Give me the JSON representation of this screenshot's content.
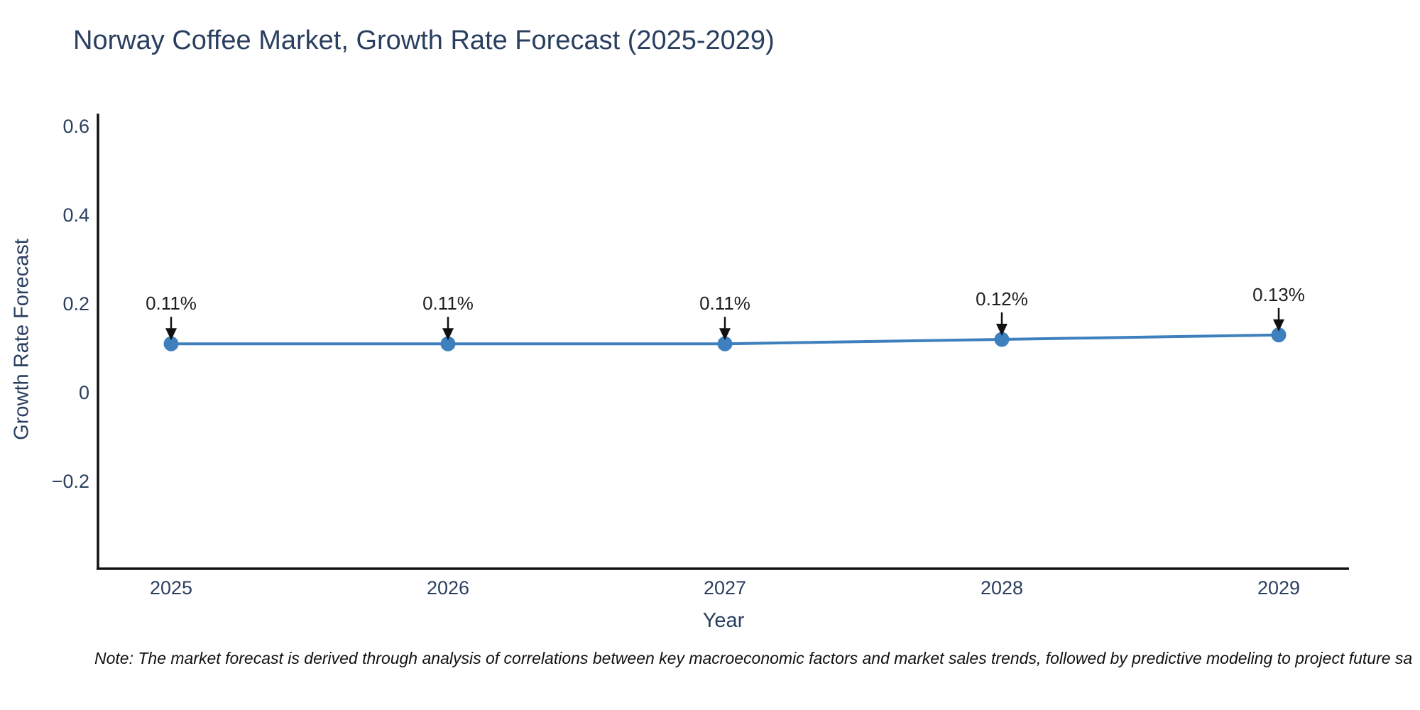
{
  "page": {
    "background": "#ffffff"
  },
  "header": {
    "title": "Norway Coffee Market, Growth Rate Forecast (2025-2029)"
  },
  "footnote": {
    "text": "Note: The market forecast is derived through analysis of correlations between key macroeconomic factors and market sales trends, followed by predictive modeling to project future sa"
  },
  "colors": {
    "text": "#2a3f5f",
    "annotation_text": "#1f1f1f",
    "axis": "#111111",
    "arrow": "#111111",
    "series_blue": "#3e80bd",
    "background": "#ffffff"
  },
  "chart_data": {
    "type": "line",
    "title": "Norway Coffee Market, Growth Rate Forecast (2025-2029)",
    "xlabel": "Year",
    "ylabel": "Growth Rate Forecast",
    "categories": [
      "2025",
      "2026",
      "2027",
      "2028",
      "2029"
    ],
    "values": [
      0.11,
      0.11,
      0.11,
      0.12,
      0.13
    ],
    "point_labels": [
      "0.11%",
      "0.11%",
      "0.11%",
      "0.12%",
      "0.13%"
    ],
    "units": "percent",
    "yticks": [
      {
        "value": 0.6,
        "label": "0.6"
      },
      {
        "value": 0.4,
        "label": "0.4"
      },
      {
        "value": 0.2,
        "label": "0.2"
      },
      {
        "value": 0,
        "label": "0"
      },
      {
        "value": -0.2,
        "label": "−0.2"
      }
    ],
    "ylim": [
      -0.4,
      0.63
    ],
    "grid": false,
    "legend_position": "none",
    "line_color": "#3e80bd",
    "marker_color": "#3e80bd",
    "annotations_have_arrows": true
  }
}
